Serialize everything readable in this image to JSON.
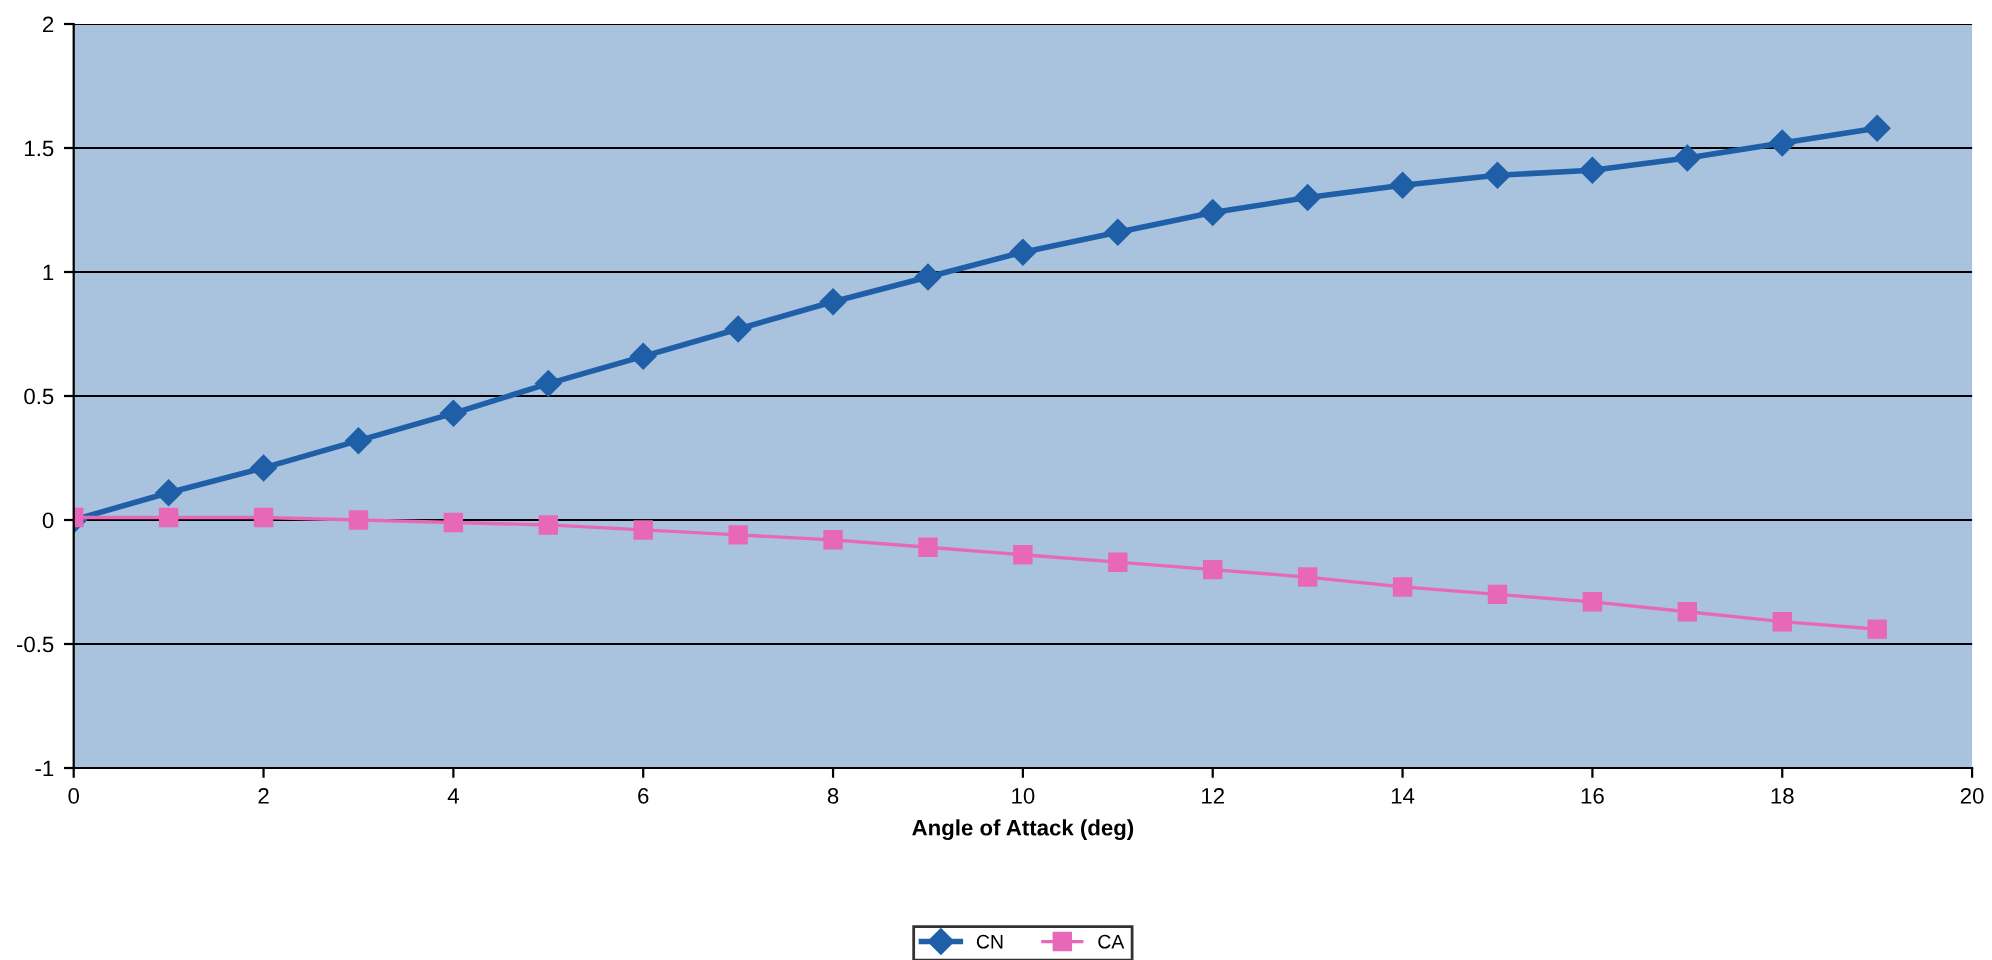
{
  "chart_data": {
    "type": "line",
    "xlabel": "Angle of Attack (deg)",
    "x": [
      0,
      1,
      2,
      3,
      4,
      5,
      6,
      7,
      8,
      9,
      10,
      11,
      12,
      13,
      14,
      15,
      16,
      17,
      18,
      19
    ],
    "series": [
      {
        "name": "CN",
        "color": "#1f5fa8",
        "marker": "diamond",
        "values": [
          0,
          0.11,
          0.21,
          0.32,
          0.43,
          0.55,
          0.66,
          0.77,
          0.88,
          0.98,
          1.08,
          1.16,
          1.24,
          1.3,
          1.35,
          1.39,
          1.41,
          1.46,
          1.52,
          1.58
        ]
      },
      {
        "name": "CA",
        "color": "#e868b8",
        "marker": "square",
        "values": [
          0.01,
          0.01,
          0.01,
          0,
          -0.01,
          -0.02,
          -0.04,
          -0.06,
          -0.08,
          -0.11,
          -0.14,
          -0.17,
          -0.2,
          -0.23,
          -0.27,
          -0.3,
          -0.33,
          -0.37,
          -0.41,
          -0.44
        ]
      }
    ],
    "xlim": [
      0,
      20
    ],
    "xticks": [
      0,
      2,
      4,
      6,
      8,
      10,
      12,
      14,
      16,
      18,
      20
    ],
    "ylim": [
      -1,
      2
    ],
    "yticks": [
      -1,
      -0.5,
      0,
      0.5,
      1,
      1.5,
      2
    ],
    "grid": "y",
    "legend": "bottom",
    "line_style": "solid"
  }
}
